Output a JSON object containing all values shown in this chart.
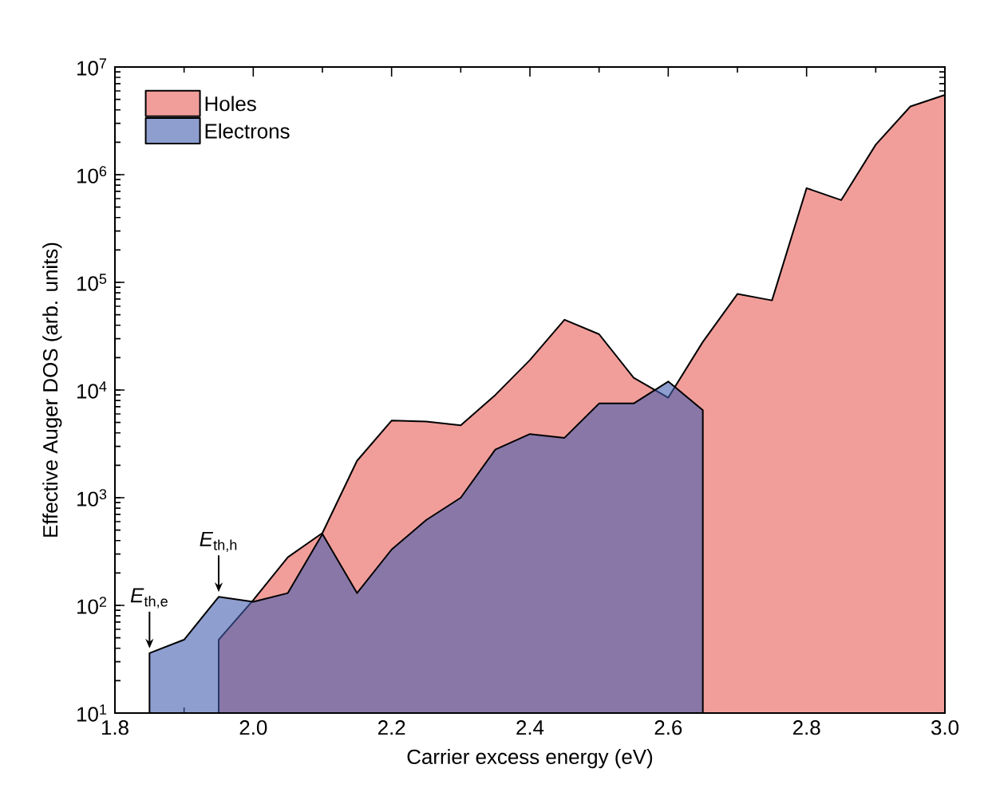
{
  "chart_data": {
    "type": "area",
    "xlabel": "Carrier excess energy (eV)",
    "ylabel": "Effective Auger DOS (arb. units)",
    "log": "y",
    "legend": "top left",
    "grid": false,
    "xlim": [
      1.8,
      3.0
    ],
    "xticks": [
      {
        "value": 1.8,
        "label": "1.8"
      },
      {
        "value": 2.0,
        "label": "2.0"
      },
      {
        "value": 2.2,
        "label": "2.2"
      },
      {
        "value": 2.4,
        "label": "2.4"
      },
      {
        "value": 2.6,
        "label": "2.6"
      },
      {
        "value": 2.8,
        "label": "2.8"
      },
      {
        "value": 3.0,
        "label": "3.0"
      }
    ],
    "ylim": [
      10,
      10000000
    ],
    "yticks": [
      {
        "value": 10,
        "label": "10$^{1}$"
      },
      {
        "value": 100,
        "label": "10$^{2}$"
      },
      {
        "value": 1000,
        "label": "10$^{3}$"
      },
      {
        "value": 10000,
        "label": "10$^{4}$"
      },
      {
        "value": 100000,
        "label": "10$^{5}$"
      },
      {
        "value": 1000000,
        "label": "10$^{6}$"
      },
      {
        "value": 10000000,
        "label": "10$^{7}$"
      }
    ],
    "series": [
      {
        "name": "Holes",
        "color": "#f19e9b",
        "x": [
          1.95,
          2.0,
          2.05,
          2.1,
          2.15,
          2.2,
          2.25,
          2.3,
          2.35,
          2.4,
          2.45,
          2.5,
          2.55,
          2.6,
          2.65,
          2.7,
          2.75,
          2.8,
          2.85,
          2.9,
          2.95,
          3.0
        ],
        "values": [
          48,
          112,
          280,
          470,
          2200,
          5200,
          5100,
          4700,
          9000,
          19000,
          45000,
          33000,
          13000,
          8500,
          28000,
          78000,
          68000,
          750000,
          580000,
          1900000,
          4300000,
          5500000
        ]
      },
      {
        "name": "Electrons",
        "color": "#8e9ecf",
        "x": [
          1.85,
          1.9,
          1.95,
          2.0,
          2.05,
          2.1,
          2.15,
          2.2,
          2.25,
          2.3,
          2.35,
          2.4,
          2.45,
          2.5,
          2.55,
          2.6,
          2.65
        ],
        "values": [
          36,
          48,
          120,
          108,
          130,
          460,
          130,
          330,
          620,
          1000,
          2800,
          3900,
          3600,
          7500,
          7500,
          12000,
          6500
        ]
      }
    ],
    "annotations": [
      {
        "text": "*E*$_{th,e}$",
        "x": 1.85,
        "y": 36
      },
      {
        "text": "*E*$_{th,h}$",
        "x": 1.95,
        "y": 120
      }
    ]
  }
}
